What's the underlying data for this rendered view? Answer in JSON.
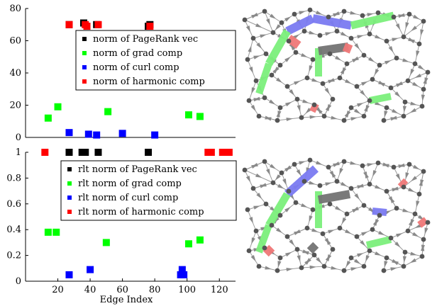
{
  "chart_data": [
    {
      "type": "scatter",
      "ylim": [
        0,
        80
      ],
      "xlim": [
        0,
        130
      ],
      "yticks": [
        "0",
        "20",
        "40",
        "60",
        "80"
      ],
      "xticks": [],
      "legend": {
        "placement": "top-right"
      },
      "series": [
        {
          "name": "norm of PageRank vec",
          "color": "#000000",
          "points": [
            [
              27,
              70
            ],
            [
              36,
              71
            ],
            [
              44,
              70
            ],
            [
              76,
              69
            ],
            [
              77,
              70
            ]
          ]
        },
        {
          "name": "norm of grad comp",
          "color": "#00ff00",
          "points": [
            [
              14,
              12
            ],
            [
              20,
              19
            ],
            [
              51,
              16
            ],
            [
              101,
              14
            ],
            [
              108,
              13
            ]
          ]
        },
        {
          "name": "norm of curl comp",
          "color": "#0000ff",
          "points": [
            [
              27,
              3
            ],
            [
              39,
              2
            ],
            [
              44,
              1.5
            ],
            [
              60,
              2.5
            ],
            [
              80,
              1.5
            ]
          ]
        },
        {
          "name": "norm of harmonic comp",
          "color": "#ff0000",
          "points": [
            [
              27,
              70
            ],
            [
              37,
              70
            ],
            [
              38,
              69
            ],
            [
              45,
              70
            ],
            [
              77,
              69
            ]
          ]
        }
      ]
    },
    {
      "type": "scatter",
      "ylim": [
        0,
        1
      ],
      "xlim": [
        0,
        130
      ],
      "yticks": [
        "0",
        "0.2",
        "0.4",
        "0.6",
        "0.8",
        "1"
      ],
      "xticks": [
        "20",
        "40",
        "60",
        "80",
        "100",
        "120"
      ],
      "xticks_values": [
        20,
        40,
        60,
        80,
        100,
        120
      ],
      "xlabel": "Edge Index",
      "legend": {
        "placement": "top-right"
      },
      "series": [
        {
          "name": "rlt norm of PageRank vec",
          "color": "#000000",
          "points": [
            [
              27,
              1
            ],
            [
              35,
              1
            ],
            [
              37,
              1
            ],
            [
              45,
              1
            ],
            [
              76,
              1
            ]
          ]
        },
        {
          "name": "rlt norm of grad comp",
          "color": "#00ff00",
          "points": [
            [
              14,
              0.38
            ],
            [
              19,
              0.38
            ],
            [
              50,
              0.3
            ],
            [
              101,
              0.29
            ],
            [
              108,
              0.32
            ]
          ]
        },
        {
          "name": "rlt norm of curl comp",
          "color": "#0000ff",
          "points": [
            [
              27,
              0.05
            ],
            [
              40,
              0.09
            ],
            [
              96,
              0.05
            ],
            [
              97,
              0.09
            ],
            [
              98,
              0.05
            ]
          ]
        },
        {
          "name": "rlt norm of harmonic comp",
          "color": "#ff0000",
          "points": [
            [
              12,
              1
            ],
            [
              113,
              1
            ],
            [
              115,
              1
            ],
            [
              122,
              1
            ],
            [
              126,
              1
            ]
          ]
        }
      ]
    }
  ],
  "colors": {
    "node": "#555555",
    "edge": "#9a9a9a",
    "graph_green": "#7cf07c",
    "graph_blue": "#7b7bf2",
    "graph_red": "#f07878",
    "graph_gray": "#737373"
  }
}
